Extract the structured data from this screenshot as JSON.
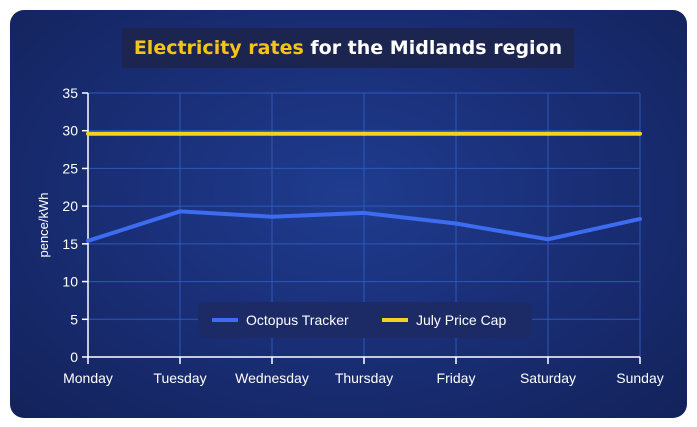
{
  "colors": {
    "title_highlight": "#f2c516",
    "title_text": "#ffffff",
    "tracker_line": "#3d6cf0",
    "cap_line": "#f4d21f",
    "grid": "#2d58b8"
  },
  "chart_data": {
    "type": "line",
    "title_highlight": "Electricity rates",
    "title_rest": " for the Midlands region",
    "xlabel": "",
    "ylabel": "pence/kWh",
    "ylim": [
      0,
      35
    ],
    "yticks": [
      "0",
      "5",
      "10",
      "15",
      "20",
      "25",
      "30",
      "35"
    ],
    "categories": [
      "Monday",
      "Tuesday",
      "Wednesday",
      "Thursday",
      "Friday",
      "Saturday",
      "Sunday"
    ],
    "series": [
      {
        "name": "Octopus Tracker",
        "values": [
          15.4,
          19.3,
          18.6,
          19.1,
          17.7,
          15.6,
          18.3
        ]
      },
      {
        "name": "July Price Cap",
        "values": [
          29.6,
          29.6,
          29.6,
          29.6,
          29.6,
          29.6,
          29.6
        ]
      }
    ],
    "legend_position": "bottom-center",
    "grid": true
  }
}
